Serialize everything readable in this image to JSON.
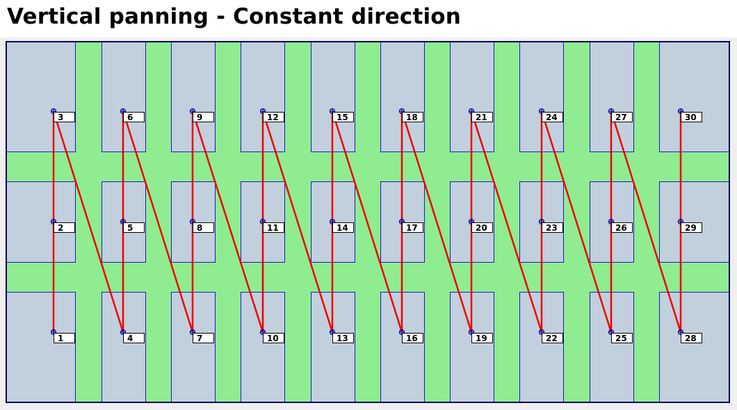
{
  "title": "Vertical panning - Constant direction",
  "colors": {
    "tile": "#c1d0dc",
    "overlap": "#90ec90",
    "tile_border": "#1818c8",
    "outer_border": "#000060",
    "path": "#ee0000",
    "marker": "#0000a0",
    "label_bg": "#ffffff",
    "label_border": "#000000"
  },
  "grid": {
    "columns": 10,
    "rows": 3
  },
  "positions": [
    {
      "n": 1,
      "col": 1,
      "row": 1,
      "label": "1"
    },
    {
      "n": 2,
      "col": 1,
      "row": 2,
      "label": "2"
    },
    {
      "n": 3,
      "col": 1,
      "row": 3,
      "label": "3"
    },
    {
      "n": 4,
      "col": 2,
      "row": 1,
      "label": "4"
    },
    {
      "n": 5,
      "col": 2,
      "row": 2,
      "label": "5"
    },
    {
      "n": 6,
      "col": 2,
      "row": 3,
      "label": "6"
    },
    {
      "n": 7,
      "col": 3,
      "row": 1,
      "label": "7"
    },
    {
      "n": 8,
      "col": 3,
      "row": 2,
      "label": "8"
    },
    {
      "n": 9,
      "col": 3,
      "row": 3,
      "label": "9"
    },
    {
      "n": 10,
      "col": 4,
      "row": 1,
      "label": "10"
    },
    {
      "n": 11,
      "col": 4,
      "row": 2,
      "label": "11"
    },
    {
      "n": 12,
      "col": 4,
      "row": 3,
      "label": "12"
    },
    {
      "n": 13,
      "col": 5,
      "row": 1,
      "label": "13"
    },
    {
      "n": 14,
      "col": 5,
      "row": 2,
      "label": "14"
    },
    {
      "n": 15,
      "col": 5,
      "row": 3,
      "label": "15"
    },
    {
      "n": 16,
      "col": 6,
      "row": 1,
      "label": "16"
    },
    {
      "n": 17,
      "col": 6,
      "row": 2,
      "label": "17"
    },
    {
      "n": 18,
      "col": 6,
      "row": 3,
      "label": "18"
    },
    {
      "n": 19,
      "col": 7,
      "row": 1,
      "label": "19"
    },
    {
      "n": 20,
      "col": 7,
      "row": 2,
      "label": "20"
    },
    {
      "n": 21,
      "col": 7,
      "row": 3,
      "label": "21"
    },
    {
      "n": 22,
      "col": 8,
      "row": 1,
      "label": "22"
    },
    {
      "n": 23,
      "col": 8,
      "row": 2,
      "label": "23"
    },
    {
      "n": 24,
      "col": 8,
      "row": 3,
      "label": "24"
    },
    {
      "n": 25,
      "col": 9,
      "row": 1,
      "label": "25"
    },
    {
      "n": 26,
      "col": 9,
      "row": 2,
      "label": "26"
    },
    {
      "n": 27,
      "col": 9,
      "row": 3,
      "label": "27"
    },
    {
      "n": 28,
      "col": 10,
      "row": 1,
      "label": "28"
    },
    {
      "n": 29,
      "col": 10,
      "row": 2,
      "label": "29"
    },
    {
      "n": 30,
      "col": 10,
      "row": 3,
      "label": "30"
    }
  ]
}
